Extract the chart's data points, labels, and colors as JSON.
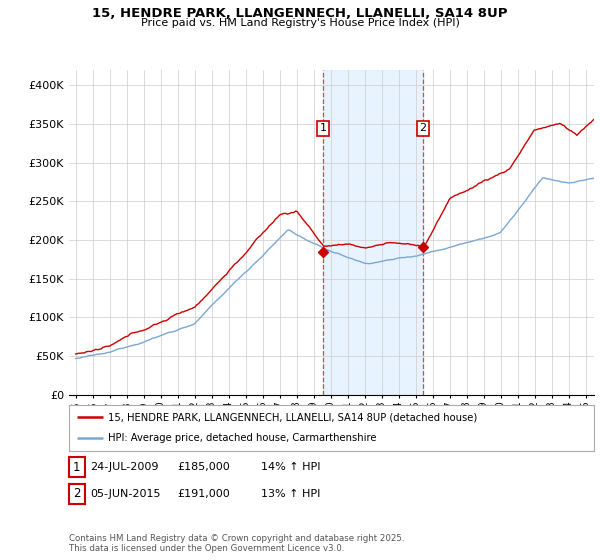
{
  "title": "15, HENDRE PARK, LLANGENNECH, LLANELLI, SA14 8UP",
  "subtitle": "Price paid vs. HM Land Registry's House Price Index (HPI)",
  "ylabel_ticks": [
    "£0",
    "£50K",
    "£100K",
    "£150K",
    "£200K",
    "£250K",
    "£300K",
    "£350K",
    "£400K"
  ],
  "ytick_values": [
    0,
    50000,
    100000,
    150000,
    200000,
    250000,
    300000,
    350000,
    400000
  ],
  "ylim": [
    0,
    420000
  ],
  "xlim_left": 1994.6,
  "xlim_right": 2025.5,
  "legend_line1": "15, HENDRE PARK, LLANGENNECH, LLANELLI, SA14 8UP (detached house)",
  "legend_line2": "HPI: Average price, detached house, Carmarthenshire",
  "table_row1": [
    "1",
    "24-JUL-2009",
    "£185,000",
    "14% ↑ HPI"
  ],
  "table_row2": [
    "2",
    "05-JUN-2015",
    "£191,000",
    "13% ↑ HPI"
  ],
  "footnote": "Contains HM Land Registry data © Crown copyright and database right 2025.\nThis data is licensed under the Open Government Licence v3.0.",
  "sale1_date": 2009.56,
  "sale1_price": 185000,
  "sale2_date": 2015.43,
  "sale2_price": 191000,
  "red_color": "#cc0000",
  "blue_color": "#7aa8d2",
  "shade_color": "#ddeeff",
  "background_color": "#ffffff",
  "grid_color": "#cccccc"
}
